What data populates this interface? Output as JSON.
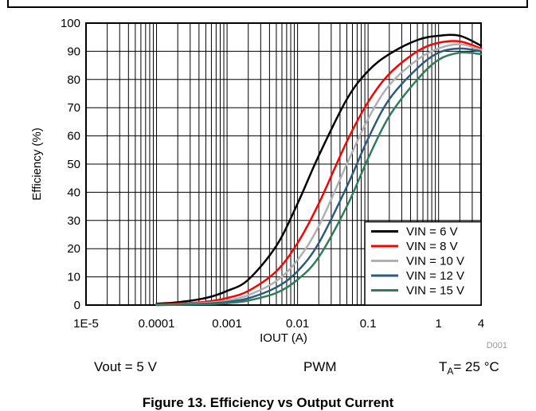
{
  "chart_data": {
    "type": "line",
    "xlabel": "IOUT (A)",
    "ylabel": "Efficiency (%)",
    "x_scale": "log",
    "xlim": [
      1e-05,
      4
    ],
    "ylim": [
      0,
      100
    ],
    "x_tick_labels": [
      "1E-5",
      "0.0001",
      "0.001",
      "0.01",
      "0.1",
      "1",
      "4"
    ],
    "x_tick_values": [
      1e-05,
      0.0001,
      0.001,
      0.01,
      0.1,
      1,
      4
    ],
    "y_ticks": [
      0,
      10,
      20,
      30,
      40,
      50,
      60,
      70,
      80,
      90,
      100
    ],
    "grid": true,
    "legend_position": "bottom-right",
    "series": [
      {
        "name": "VIN = 6 V",
        "color": "#000000",
        "x": [
          0.0001,
          0.0002,
          0.0005,
          0.001,
          0.002,
          0.005,
          0.01,
          0.02,
          0.05,
          0.1,
          0.2,
          0.5,
          1,
          2,
          4
        ],
        "y": [
          0.5,
          1,
          2.5,
          5,
          9,
          21,
          36,
          53,
          73,
          83,
          89,
          94,
          95.5,
          95.5,
          92
        ]
      },
      {
        "name": "VIN = 8 V",
        "color": "#ff0000",
        "x": [
          0.0001,
          0.0002,
          0.0005,
          0.001,
          0.002,
          0.005,
          0.01,
          0.02,
          0.05,
          0.1,
          0.2,
          0.5,
          1,
          2,
          4
        ],
        "y": [
          0.2,
          0.5,
          1.2,
          2.5,
          5,
          12,
          22,
          36,
          58,
          72,
          82,
          90,
          93,
          93.5,
          91
        ]
      },
      {
        "name": "VIN = 10 V",
        "color": "#b0b0b0",
        "x": [
          0.0001,
          0.0002,
          0.0005,
          0.001,
          0.002,
          0.005,
          0.01,
          0.02,
          0.05,
          0.1,
          0.2,
          0.5,
          1,
          2,
          4
        ],
        "y": [
          0.1,
          0.3,
          0.8,
          1.6,
          3.5,
          8.5,
          16,
          28,
          50,
          66,
          78,
          87,
          91,
          92.5,
          90.5
        ]
      },
      {
        "name": "VIN = 12 V",
        "color": "#2e5a7e",
        "x": [
          0.0001,
          0.0002,
          0.0005,
          0.001,
          0.002,
          0.005,
          0.01,
          0.02,
          0.05,
          0.1,
          0.2,
          0.5,
          1,
          2,
          4
        ],
        "y": [
          0,
          0.2,
          0.5,
          1.1,
          2.4,
          6.3,
          12,
          22,
          42,
          59,
          73,
          84,
          89.5,
          91,
          90
        ]
      },
      {
        "name": "VIN = 15 V",
        "color": "#2e7d5b",
        "x": [
          0.0001,
          0.0002,
          0.0005,
          0.001,
          0.002,
          0.005,
          0.01,
          0.02,
          0.05,
          0.1,
          0.2,
          0.5,
          1,
          2,
          4
        ],
        "y": [
          0,
          0.1,
          0.3,
          0.7,
          1.6,
          4.3,
          9,
          17,
          35,
          52,
          67,
          80,
          87,
          89.5,
          89
        ]
      }
    ],
    "annotation": "D001"
  },
  "conditions": {
    "vout": "Vout = 5 V",
    "mode": "PWM",
    "temp_prefix": "T",
    "temp_sub": "A",
    "temp_value": "= 25 °C"
  },
  "caption": "Figure 13. Efficiency vs Output Current"
}
